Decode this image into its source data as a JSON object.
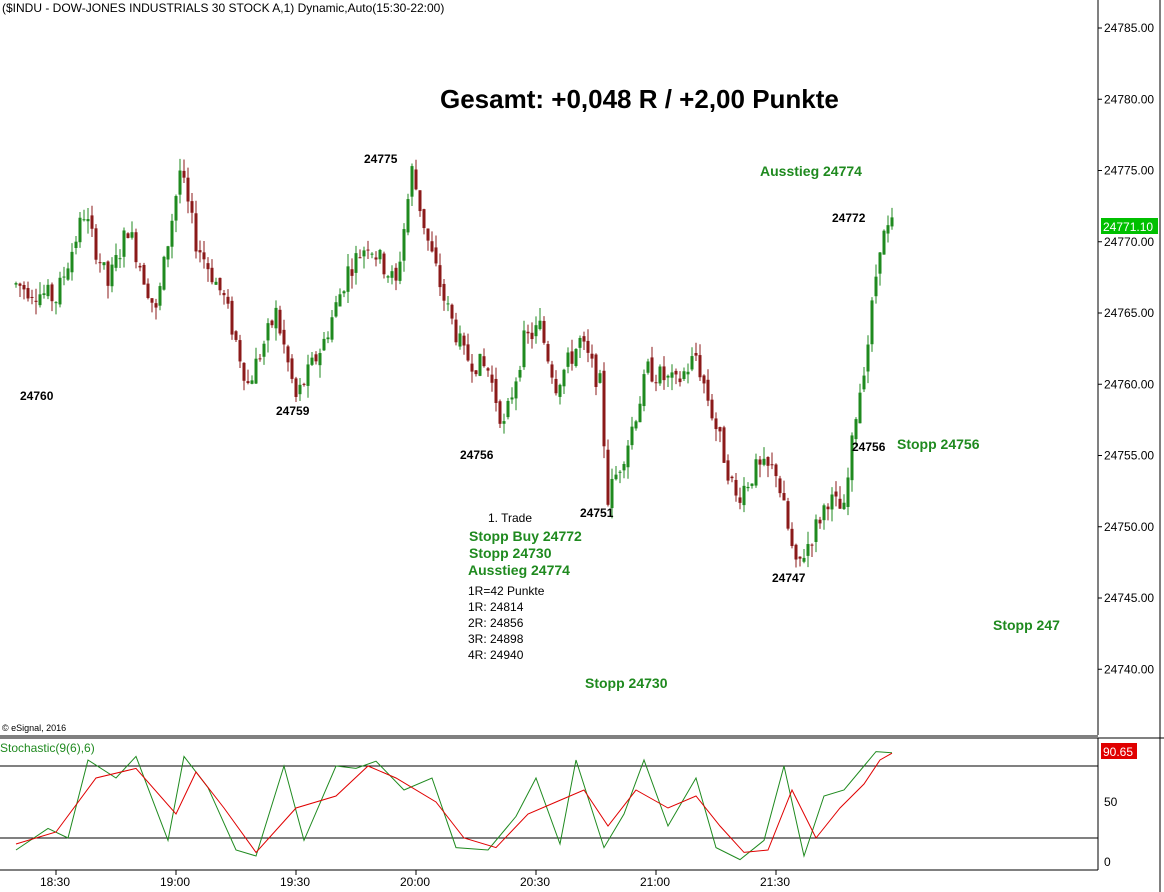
{
  "header": {
    "title": "($INDU - DOW-JONES INDUSTRIALS 30 STOCK A,1) Dynamic,Auto(15:30-22:00)"
  },
  "headline": "Gesamt: +0,048 R / +2,00 Punkte",
  "copyright": "© eSignal, 2016",
  "price_axis": {
    "ticks": [
      "24785.00",
      "24780.00",
      "24775.00",
      "24770.00",
      "24765.00",
      "24760.00",
      "24755.00",
      "24750.00",
      "24745.00",
      "24740.00"
    ],
    "last_price_label": "24771.10",
    "last_price_color": "#00c000"
  },
  "stoch_axis": {
    "ticks": [
      "50",
      "0"
    ],
    "last_value_label": "90.65",
    "last_value_color": "#e00000"
  },
  "time_axis": {
    "ticks": [
      "18:30",
      "19:00",
      "19:30",
      "20:00",
      "20:30",
      "21:00",
      "21:30"
    ]
  },
  "price_labels": [
    "24760",
    "24759",
    "24775",
    "24756",
    "24751",
    "24747",
    "24772",
    "24756"
  ],
  "trade_notes": {
    "title": "1. Trade",
    "green_lines": [
      "Stopp Buy 24772",
      "Stopp 24730",
      "Ausstieg 24774"
    ],
    "detail_lines": [
      "1R=42 Punkte",
      "1R: 24814",
      "2R: 24856",
      "3R: 24898",
      "4R: 24940"
    ]
  },
  "annotations": {
    "ausstieg": "Ausstieg 24774",
    "stopp_24756": "Stopp 24756",
    "stopp_247": "Stopp 247",
    "stopp_24730": "Stopp 24730"
  },
  "colors": {
    "up": "#1f8a1f",
    "down": "#8b1a1a",
    "k_line": "#1f8a1f",
    "d_line": "#e00000"
  },
  "chart_data": [
    {
      "type": "candlestick",
      "title": "($INDU - DOW-JONES INDUSTRIALS 30 STOCK A,1) Dynamic,Auto(15:30-22:00)",
      "x_range": [
        "18:20",
        "22:00"
      ],
      "ylim": [
        24735,
        24788
      ],
      "close_path": [
        [
          "18:20",
          24767
        ],
        [
          "18:30",
          24766
        ],
        [
          "18:37",
          24772
        ],
        [
          "18:43",
          24767
        ],
        [
          "18:48",
          24771
        ],
        [
          "18:55",
          24765
        ],
        [
          "19:01",
          24775
        ],
        [
          "19:05",
          24770
        ],
        [
          "19:12",
          24766
        ],
        [
          "19:18",
          24760
        ],
        [
          "19:25",
          24765
        ],
        [
          "19:30",
          24759
        ],
        [
          "19:37",
          24763
        ],
        [
          "19:43",
          24768
        ],
        [
          "19:48",
          24770
        ],
        [
          "19:55",
          24767
        ],
        [
          "19:59",
          24775
        ],
        [
          "20:03",
          24770
        ],
        [
          "20:07",
          24766
        ],
        [
          "20:12",
          24762
        ],
        [
          "20:18",
          24761
        ],
        [
          "20:22",
          24757
        ],
        [
          "20:27",
          24763
        ],
        [
          "20:31",
          24764
        ],
        [
          "20:35",
          24760
        ],
        [
          "20:41",
          24763
        ],
        [
          "20:46",
          24760
        ],
        [
          "20:48",
          24752
        ],
        [
          "20:53",
          24756
        ],
        [
          "20:58",
          24761
        ],
        [
          "21:05",
          24760
        ],
        [
          "21:10",
          24762
        ],
        [
          "21:14",
          24758
        ],
        [
          "21:20",
          24752
        ],
        [
          "21:25",
          24754
        ],
        [
          "21:30",
          24754
        ],
        [
          "21:35",
          24747
        ],
        [
          "21:40",
          24750
        ],
        [
          "21:43",
          24752
        ],
        [
          "21:47",
          24751
        ],
        [
          "21:50",
          24758
        ],
        [
          "21:53",
          24763
        ],
        [
          "21:56",
          24770
        ],
        [
          "21:59",
          24771.1
        ]
      ],
      "labels": [
        {
          "text": "24760",
          "value": 24760
        },
        {
          "text": "24759",
          "value": 24759
        },
        {
          "text": "24775",
          "value": 24775
        },
        {
          "text": "24756",
          "value": 24756
        },
        {
          "text": "24751",
          "value": 24751
        },
        {
          "text": "24747",
          "value": 24747
        },
        {
          "text": "24772",
          "value": 24772
        },
        {
          "text": "24756",
          "value": 24756
        }
      ],
      "last_price": 24771.1
    },
    {
      "type": "line",
      "name": "Stochastic(9(6),6)",
      "ylim": [
        0,
        100
      ],
      "reference_lines": [
        20,
        80
      ],
      "series": [
        {
          "name": "%K",
          "points": [
            [
              "18:20",
              10
            ],
            [
              "18:28",
              28
            ],
            [
              "18:33",
              20
            ],
            [
              "18:38",
              85
            ],
            [
              "18:45",
              70
            ],
            [
              "18:50",
              88
            ],
            [
              "18:58",
              18
            ],
            [
              "19:02",
              88
            ],
            [
              "19:08",
              62
            ],
            [
              "19:15",
              10
            ],
            [
              "19:20",
              5
            ],
            [
              "19:27",
              80
            ],
            [
              "19:32",
              18
            ],
            [
              "19:40",
              80
            ],
            [
              "19:45",
              78
            ],
            [
              "19:50",
              84
            ],
            [
              "19:57",
              60
            ],
            [
              "20:04",
              70
            ],
            [
              "20:10",
              12
            ],
            [
              "20:18",
              10
            ],
            [
              "20:25",
              38
            ],
            [
              "20:30",
              70
            ],
            [
              "20:36",
              15
            ],
            [
              "20:40",
              85
            ],
            [
              "20:47",
              12
            ],
            [
              "20:52",
              40
            ],
            [
              "20:57",
              85
            ],
            [
              "21:03",
              30
            ],
            [
              "21:10",
              70
            ],
            [
              "21:15",
              12
            ],
            [
              "21:21",
              2
            ],
            [
              "21:27",
              18
            ],
            [
              "21:32",
              80
            ],
            [
              "21:37",
              5
            ],
            [
              "21:42",
              55
            ],
            [
              "21:47",
              60
            ],
            [
              "21:52",
              80
            ],
            [
              "21:55",
              92
            ],
            [
              "21:59",
              91
            ]
          ]
        },
        {
          "name": "%D",
          "points": [
            [
              "18:20",
              15
            ],
            [
              "18:30",
              25
            ],
            [
              "18:40",
              70
            ],
            [
              "18:50",
              78
            ],
            [
              "19:00",
              40
            ],
            [
              "19:05",
              75
            ],
            [
              "19:12",
              45
            ],
            [
              "19:20",
              8
            ],
            [
              "19:30",
              45
            ],
            [
              "19:40",
              55
            ],
            [
              "19:48",
              80
            ],
            [
              "19:55",
              70
            ],
            [
              "20:05",
              50
            ],
            [
              "20:12",
              20
            ],
            [
              "20:20",
              12
            ],
            [
              "20:28",
              40
            ],
            [
              "20:35",
              50
            ],
            [
              "20:42",
              60
            ],
            [
              "20:48",
              30
            ],
            [
              "20:55",
              60
            ],
            [
              "21:03",
              45
            ],
            [
              "21:10",
              55
            ],
            [
              "21:16",
              30
            ],
            [
              "21:22",
              8
            ],
            [
              "21:28",
              10
            ],
            [
              "21:34",
              60
            ],
            [
              "21:40",
              20
            ],
            [
              "21:46",
              45
            ],
            [
              "21:52",
              65
            ],
            [
              "21:56",
              85
            ],
            [
              "21:59",
              90.65
            ]
          ]
        }
      ],
      "last_value": 90.65
    }
  ]
}
